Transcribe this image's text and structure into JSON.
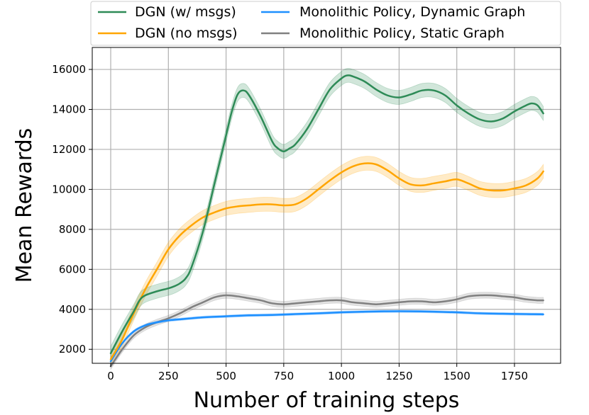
{
  "chart_data": {
    "type": "line",
    "title": "",
    "xlabel": "Number of training steps",
    "ylabel": "Mean Rewards",
    "xlim": [
      -80,
      1950
    ],
    "ylim": [
      1300,
      17100
    ],
    "xticks": [
      0,
      250,
      500,
      750,
      1000,
      1250,
      1500,
      1750
    ],
    "yticks": [
      2000,
      4000,
      6000,
      8000,
      10000,
      12000,
      14000,
      16000
    ],
    "grid": true,
    "legend_placement": "top, above plot, two columns",
    "series": [
      {
        "name": "DGN (w/ msgs)",
        "color": "#2e8b57",
        "band": 350,
        "x": [
          0,
          50,
          100,
          125,
          150,
          200,
          250,
          275,
          300,
          325,
          350,
          400,
          450,
          500,
          525,
          550,
          575,
          600,
          650,
          700,
          725,
          750,
          775,
          800,
          850,
          900,
          950,
          1000,
          1025,
          1050,
          1100,
          1150,
          1200,
          1250,
          1300,
          1350,
          1400,
          1450,
          1500,
          1550,
          1600,
          1650,
          1700,
          1750,
          1800,
          1825,
          1850,
          1875
        ],
        "values": [
          1800,
          2900,
          3900,
          4450,
          4700,
          4900,
          5050,
          5150,
          5300,
          5550,
          6100,
          7900,
          10300,
          12700,
          13900,
          14750,
          14950,
          14700,
          13650,
          12400,
          12050,
          11900,
          12050,
          12250,
          13000,
          14000,
          15000,
          15550,
          15700,
          15650,
          15400,
          15000,
          14700,
          14600,
          14750,
          14950,
          14950,
          14700,
          14200,
          13800,
          13500,
          13400,
          13550,
          13900,
          14200,
          14300,
          14200,
          13800
        ]
      },
      {
        "name": "DGN (no msgs)",
        "color": "#ffa500",
        "band": 350,
        "x": [
          0,
          50,
          100,
          150,
          200,
          250,
          300,
          350,
          400,
          450,
          500,
          550,
          600,
          650,
          700,
          750,
          800,
          850,
          900,
          950,
          1000,
          1050,
          1100,
          1150,
          1200,
          1250,
          1300,
          1350,
          1400,
          1450,
          1500,
          1550,
          1600,
          1650,
          1700,
          1750,
          1800,
          1850,
          1875
        ],
        "values": [
          1500,
          2500,
          3800,
          5000,
          6000,
          7000,
          7700,
          8200,
          8600,
          8850,
          9050,
          9150,
          9200,
          9250,
          9250,
          9200,
          9250,
          9550,
          10000,
          10450,
          10850,
          11150,
          11300,
          11250,
          10950,
          10550,
          10250,
          10200,
          10300,
          10400,
          10500,
          10300,
          10050,
          9950,
          9950,
          10050,
          10200,
          10550,
          10900
        ]
      },
      {
        "name": "Monolithic Policy, Dynamic Graph",
        "color": "#1e90ff",
        "band": 60,
        "x": [
          0,
          50,
          100,
          150,
          200,
          250,
          300,
          400,
          500,
          600,
          700,
          800,
          900,
          1000,
          1100,
          1200,
          1300,
          1400,
          1500,
          1600,
          1700,
          1800,
          1875
        ],
        "values": [
          1400,
          2300,
          2900,
          3200,
          3350,
          3450,
          3500,
          3600,
          3650,
          3700,
          3720,
          3760,
          3800,
          3850,
          3880,
          3900,
          3900,
          3880,
          3850,
          3800,
          3780,
          3760,
          3750
        ]
      },
      {
        "name": "Monolithic Policy, Static Graph",
        "color": "#808080",
        "band": 150,
        "x": [
          0,
          50,
          100,
          150,
          200,
          250,
          300,
          350,
          400,
          450,
          500,
          550,
          600,
          650,
          700,
          750,
          800,
          850,
          900,
          950,
          1000,
          1050,
          1100,
          1150,
          1200,
          1250,
          1300,
          1350,
          1400,
          1450,
          1500,
          1550,
          1600,
          1650,
          1700,
          1750,
          1800,
          1850,
          1875
        ],
        "values": [
          1150,
          2000,
          2700,
          3100,
          3350,
          3550,
          3800,
          4100,
          4350,
          4600,
          4700,
          4650,
          4550,
          4450,
          4300,
          4250,
          4300,
          4350,
          4400,
          4450,
          4450,
          4350,
          4300,
          4250,
          4300,
          4350,
          4400,
          4400,
          4350,
          4400,
          4500,
          4650,
          4700,
          4700,
          4650,
          4600,
          4500,
          4450,
          4450
        ]
      }
    ]
  }
}
